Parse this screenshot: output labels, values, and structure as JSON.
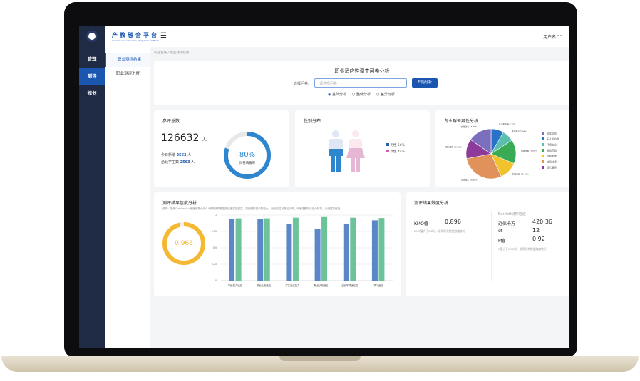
{
  "app": {
    "brand": "产教融合平台",
    "brand_sub": "Industry and education integration platform",
    "user": "用户名 ﹀"
  },
  "sidebar": {
    "items": [
      {
        "label": "管理"
      },
      {
        "label": "测评"
      },
      {
        "label": "规划"
      }
    ]
  },
  "submenu": {
    "items": [
      {
        "label": "职业测评结果"
      },
      {
        "label": "职业测评进度"
      }
    ]
  },
  "breadcrumb": "职业发展 / 职业测评结果",
  "survey": {
    "title": "职业适应性调查问卷分析",
    "select_label": "选择问卷:",
    "select_placeholder": "请选择问卷",
    "button": "开始分析",
    "radios": [
      {
        "label": "基础分析",
        "checked": true
      },
      {
        "label": "整体分析",
        "checked": false
      },
      {
        "label": "差异分析",
        "checked": false
      }
    ]
  },
  "total": {
    "title": "参评总数",
    "count": "126632",
    "unit": "人",
    "today_label": "今日新增",
    "today": "2563",
    "students_label": "活跃学生数",
    "students": "2563",
    "rate": "80%",
    "rate_value": 0.8,
    "rate_label": "问卷填报率"
  },
  "gender": {
    "title": "性别分布",
    "legend": [
      {
        "label": "男性 56%",
        "color": "#1f5fae"
      },
      {
        "label": "女性 44%",
        "color": "#d45ea0"
      }
    ]
  },
  "chart_data": [
    {
      "type": "pie",
      "title": "专业群差异性分析",
      "legend": "right",
      "slices": [
        {
          "name": "无人机应用",
          "value": 8.25,
          "label": "无人机应用 8.25%",
          "color": "#2873c8"
        },
        {
          "name": "环境安全",
          "value": 7.54,
          "label": "环境安全 7.54%",
          "color": "#5bbfb0"
        },
        {
          "name": "食品药品",
          "value": 15.6,
          "label": "食品药品 15.60%",
          "color": "#3aaa55"
        },
        {
          "name": "智能制造",
          "value": 11.9,
          "label": "智能制造 11.90%",
          "color": "#f0c22c"
        },
        {
          "name": "信息技术",
          "value": 28.6,
          "label": "信息技术 28.60%",
          "color": "#e0925a"
        },
        {
          "name": "现代服务",
          "value": 12.72,
          "label": "现代服务 12.72%",
          "color": "#8e3a9a"
        },
        {
          "name": "文化创意",
          "value": 15.39,
          "label": "文化创意 15.39%",
          "color": "#7b6fbd"
        }
      ],
      "legend_order": [
        "文化创意",
        "无人机应用",
        "环境安全",
        "食品药品",
        "智能制造",
        "信息技术",
        "现代服务"
      ]
    },
    {
      "type": "bar",
      "title": "测评结果信度分析",
      "note": "说明：虽然Cronbach α信度系数大于0.9说明研究数据的信度质量很高，项已删除的系数较大，而相关性系数较小时，可考虑删除对应分析项，从而提高信度",
      "ylim": [
        0,
        1
      ],
      "yticks": [
        "0",
        "0.25",
        "0.5",
        "0.75",
        "1"
      ],
      "grid": true,
      "categories": [
        "职业能力适应",
        "职业心态适应",
        "学生社交能力",
        "职业认知适应",
        "企业环境适应性",
        "学习适应"
      ],
      "series": [
        {
          "values": [
            0.94,
            0.945,
            0.86,
            0.79,
            0.87,
            0.92
          ],
          "color": "#5b86c8"
        },
        {
          "values": [
            0.95,
            0.95,
            0.96,
            0.97,
            0.96,
            0.955
          ],
          "color": "#6cc39a"
        }
      ],
      "gauge": {
        "value": 0.966,
        "label": "0.966",
        "color": "#f5b833"
      }
    }
  ],
  "validity": {
    "title": "测评结果效度分析",
    "kmo_label": "KMO值",
    "kmo": "0.896",
    "kmo_note": "KMO值大于0.8时，说明研究数据效度较好",
    "bartlett_title": "Bartlett球形检验",
    "rows": [
      {
        "label": "近似卡方",
        "value": "420.36"
      },
      {
        "label": "df",
        "value": "12"
      },
      {
        "label": "P值",
        "value": "0.92"
      }
    ],
    "p_note": "P值小于0.05时，说明研究数据效度较好"
  }
}
